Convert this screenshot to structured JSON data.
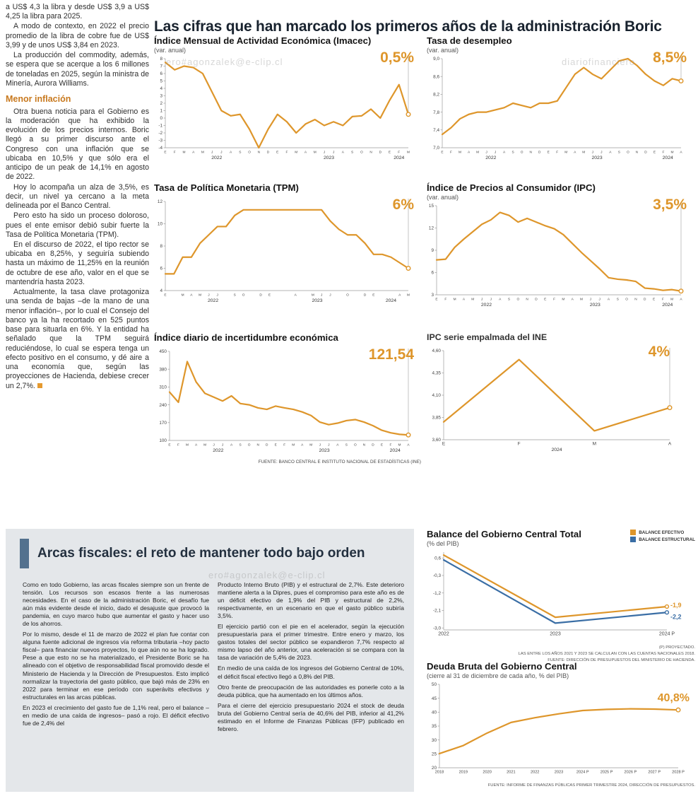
{
  "headline": "Las cifras que han marcado los primeros años de la administración Boric",
  "watermarks": {
    "wm1": "ero#agonzalek@e-clip.cl",
    "wm2": "diariofinanciero",
    "wm3": "ero#agonzalek@e-clip.cl"
  },
  "left_column": {
    "paragraphs": [
      "a US$ 4,3 la libra y desde US$ 3,9 a US$ 4,25 la libra para 2025.",
      "A modo de contexto, en 2022 el precio promedio de la libra de cobre fue de US$ 3,99 y de unos US$ 3,84 en 2023.",
      "La producción del commodity, además, se espera que se acerque a los 6 millones de toneladas en 2025, según la ministra de Minería, Aurora Williams."
    ],
    "subhead": "Menor inflación",
    "paragraphs2": [
      "Otra buena noticia para el Gobierno es la moderación que ha exhibido la evolución de los precios internos. Boric llegó a su primer discurso ante el Congreso con una inflación que se ubicaba en 10,5% y que sólo era el anticipo de un peak de 14,1% en agosto de 2022.",
      "Hoy lo acompaña un alza de 3,5%, es decir, un nivel ya cercano a la meta delineada por el Banco Central.",
      "Pero esto ha sido un proceso doloroso, pues el ente emisor debió subir fuerte la Tasa de Política Monetaria (TPM).",
      "En el discurso de 2022, el tipo rector se ubicaba en 8,25%, y seguiría subiendo hasta un máximo de 11,25% en la reunión de octubre de ese año, valor en el que se mantendría hasta 2023.",
      "Actualmente, la tasa clave protagoniza una senda de bajas –de la mano de una menor inflación–, por lo cual el Consejo del banco ya la ha recortado en 525 puntos base para situarla en 6%. Y la entidad ha señalado que la TPM seguirá reduciéndose, lo cual se espera tenga un efecto positivo en el consumo, y dé aire a una economía que, según las proyecciones de Hacienda, debiese crecer un 2,7%."
    ]
  },
  "source_note": "FUENTE: BANCO CENTRAL E INSTITUTO NACIONAL DE ESTADÍSTICAS (INE)",
  "fiscal": {
    "headline": "Arcas fiscales: el reto de mantener todo bajo orden",
    "col1": [
      "Como en todo Gobierno, las arcas fiscales siempre son un frente de tensión. Los recursos son escasos frente a las numerosas necesidades. En el caso de la administración Boric, el desafío fue aún más evidente desde el inicio, dado el desajuste que provocó la pandemia, en cuyo marco hubo que aumentar el gasto y hacer uso de los ahorros.",
      "Por lo mismo, desde el 11 de marzo de 2022 el plan fue contar con alguna fuente adicional de ingresos vía reforma tributaria –hoy pacto fiscal– para financiar nuevos proyectos, lo que aún no se ha logrado. Pese a que esto no se ha materializado, el Presidente Boric se ha alineado con el objetivo de responsabilidad fiscal promovido desde el Ministerio de Hacienda y la Dirección de Presupuestos. Esto implicó normalizar la trayectoria del gasto público, que bajó más de 23% en 2022 para terminar en ese período con superávits efectivos y estructurales en las arcas públicas.",
      "En 2023 el crecimiento del gasto fue de 1,1% real, pero el balance –en medio de una caída de ingresos– pasó a rojo. El déficit efectivo fue de 2,4% del"
    ],
    "col2": [
      "Producto Interno Bruto (PIB) y el estructural de 2,7%. Este deterioro mantiene alerta a la Dipres, pues el compromiso para este año es de un déficit efectivo de 1,9% del PIB y estructural de 2,2%, respectivamente, en un escenario en que el gasto público subiría 3,5%.",
      "El ejercicio partió con el pie en el acelerador, según la ejecución presupuestaria para el primer trimestre. Entre enero y marzo, los gastos totales del sector público se expandieron 7,7% respecto al mismo lapso del año anterior, una aceleración si se compara con la tasa de variación de 5,4% de 2023.",
      "En medio de una caída de los ingresos del Gobierno Central de 10%, el déficit fiscal efectivo llegó a 0,8% del PIB.",
      "Otro frente de preocupación de las autoridades es ponerle coto a la deuda pública, que ha aumentado en los últimos años.",
      "Para el cierre del ejercicio presupuestario 2024 el stock de deuda bruta del Gobierno Central sería de 40,6% del PIB, inferior al 41,2% estimado en el Informe de Finanzas Públicas (IFP) publicado en febrero."
    ]
  },
  "colors": {
    "accent_orange": "#de962b",
    "line_blue": "#3a6ea5",
    "box_grey": "#e4e7ea",
    "bar_blue": "#53718e"
  },
  "chart_data": [
    {
      "name": "imacec",
      "type": "line",
      "title": "Índice Mensual de Actividad Económica (Imacec)",
      "subtitle": "(var. anual)",
      "callout": "0,5%",
      "ylim": [
        -4,
        8
      ],
      "y_ticks": [
        8,
        7,
        6,
        5,
        4,
        3,
        2,
        1,
        0,
        -1,
        -2,
        -3,
        -4
      ],
      "x_labels": [
        "E",
        "F",
        "M",
        "A",
        "M",
        "J",
        "J",
        "A",
        "S",
        "O",
        "N",
        "D",
        "E",
        "F",
        "M",
        "A",
        "M",
        "J",
        "J",
        "A",
        "S",
        "O",
        "N",
        "D",
        "E",
        "F",
        "M"
      ],
      "years": [
        {
          "label": "2022",
          "i": 5.5
        },
        {
          "label": "2023",
          "i": 17.5
        },
        {
          "label": "2024",
          "i": 25
        }
      ],
      "series": [
        {
          "name": "Imacec var. anual %",
          "color": "#de962b",
          "values": [
            7.5,
            6.5,
            7.0,
            6.8,
            6.0,
            3.5,
            1.0,
            0.3,
            0.5,
            -1.5,
            -4.0,
            -1.5,
            0.5,
            -0.5,
            -2.0,
            -0.8,
            -0.2,
            -1.0,
            -0.5,
            -1.0,
            0.2,
            0.3,
            1.2,
            0.0,
            2.4,
            4.5,
            0.5
          ]
        }
      ],
      "dropline": true,
      "ml": 16,
      "mb": 20,
      "xfs": 4.8
    },
    {
      "name": "desempleo",
      "type": "line",
      "title": "Tasa de desempleo",
      "subtitle": "(var. anual)",
      "callout": "8,5%",
      "ylim": [
        7.0,
        9.0
      ],
      "y_ticks": [
        9.0,
        8.6,
        8.2,
        7.8,
        7.4,
        7.0
      ],
      "y_tick_labels": [
        "9,0",
        "8,6",
        "8,2",
        "7,8",
        "7,4",
        "7,0"
      ],
      "x_labels": [
        "E",
        "F",
        "M",
        "A",
        "M",
        "J",
        "J",
        "A",
        "S",
        "O",
        "N",
        "D",
        "E",
        "F",
        "M",
        "A",
        "M",
        "J",
        "J",
        "A",
        "S",
        "O",
        "N",
        "D",
        "E",
        "F",
        "M",
        "A"
      ],
      "years": [
        {
          "label": "2022",
          "i": 5.5
        },
        {
          "label": "2023",
          "i": 17.5
        },
        {
          "label": "2024",
          "i": 25.5
        }
      ],
      "series": [
        {
          "name": "Tasa de desempleo %",
          "color": "#de962b",
          "values": [
            7.3,
            7.45,
            7.65,
            7.75,
            7.8,
            7.8,
            7.85,
            7.9,
            8.0,
            7.95,
            7.9,
            8.0,
            8.0,
            8.05,
            8.35,
            8.65,
            8.8,
            8.65,
            8.55,
            8.75,
            8.95,
            9.0,
            8.85,
            8.65,
            8.5,
            8.4,
            8.55,
            8.5
          ]
        }
      ],
      "dropline": true,
      "ml": 22,
      "mb": 20,
      "xfs": 4.8
    },
    {
      "name": "tpm",
      "type": "line",
      "title": "Tasa de Política Monetaria (TPM)",
      "callout": "6%",
      "ylim": [
        4,
        12
      ],
      "y_ticks": [
        12,
        10,
        8,
        6,
        4
      ],
      "x_labels": [
        "E",
        "",
        "M",
        "A",
        "M",
        "J",
        "J",
        "",
        "S",
        "O",
        "",
        "D",
        "E",
        "",
        "",
        "A",
        "",
        "M",
        "J",
        "J",
        "",
        "O",
        "",
        "D",
        "E",
        "",
        "",
        "A",
        "M"
      ],
      "years": [
        {
          "label": "2022",
          "i": 5.5
        },
        {
          "label": "2023",
          "i": 17.5
        },
        {
          "label": "2024",
          "i": 26
        }
      ],
      "series": [
        {
          "name": "TPM %",
          "color": "#de962b",
          "values": [
            5.5,
            5.5,
            7,
            7,
            8.25,
            9,
            9.75,
            9.75,
            10.75,
            11.25,
            11.25,
            11.25,
            11.25,
            11.25,
            11.25,
            11.25,
            11.25,
            11.25,
            11.25,
            10.25,
            9.5,
            9,
            9,
            8.25,
            7.25,
            7.25,
            7,
            6.5,
            6
          ]
        }
      ],
      "dropline": true,
      "ml": 16,
      "mb": 20,
      "xfs": 4.8
    },
    {
      "name": "ipc",
      "type": "line",
      "title": "Índice de Precios al Consumidor (IPC)",
      "subtitle": "(var. anual)",
      "callout": "3,5%",
      "ylim": [
        3,
        15
      ],
      "y_ticks": [
        15,
        12,
        9,
        6,
        3
      ],
      "x_labels": [
        "E",
        "F",
        "M",
        "A",
        "M",
        "J",
        "J",
        "A",
        "S",
        "O",
        "N",
        "D",
        "E",
        "F",
        "M",
        "A",
        "M",
        "J",
        "J",
        "A",
        "S",
        "O",
        "N",
        "D",
        "E",
        "F",
        "M",
        "A"
      ],
      "years": [
        {
          "label": "2022",
          "i": 5.5
        },
        {
          "label": "2023",
          "i": 17.5
        },
        {
          "label": "2024",
          "i": 25.5
        }
      ],
      "series": [
        {
          "name": "IPC var. anual %",
          "color": "#de962b",
          "values": [
            7.7,
            7.8,
            9.4,
            10.5,
            11.5,
            12.5,
            13.1,
            14.1,
            13.7,
            12.8,
            13.3,
            12.8,
            12.3,
            11.9,
            11.1,
            9.9,
            8.7,
            7.6,
            6.5,
            5.3,
            5.1,
            5.0,
            4.8,
            3.9,
            3.8,
            3.6,
            3.7,
            3.5
          ]
        }
      ],
      "dropline": true,
      "ml": 14,
      "mb": 20,
      "xfs": 4.8
    },
    {
      "name": "incertidumbre",
      "type": "line",
      "title": "Índice diario de incertidumbre económica",
      "callout": "121,54",
      "ylim": [
        100,
        450
      ],
      "y_ticks": [
        450,
        380,
        310,
        240,
        170,
        100
      ],
      "x_labels": [
        "E",
        "F",
        "M",
        "A",
        "M",
        "J",
        "J",
        "A",
        "S",
        "O",
        "N",
        "D",
        "E",
        "F",
        "M",
        "A",
        "M",
        "J",
        "J",
        "A",
        "S",
        "O",
        "N",
        "D",
        "E",
        "F",
        "M",
        "A"
      ],
      "years": [
        {
          "label": "2022",
          "i": 5.5
        },
        {
          "label": "2023",
          "i": 17.5
        },
        {
          "label": "2024",
          "i": 25.5
        }
      ],
      "series": [
        {
          "name": "Índice de incertidumbre",
          "color": "#de962b",
          "values": [
            290,
            250,
            410,
            330,
            285,
            270,
            255,
            275,
            245,
            240,
            228,
            222,
            235,
            228,
            222,
            212,
            198,
            172,
            162,
            168,
            178,
            182,
            172,
            158,
            140,
            130,
            124,
            121.54
          ]
        }
      ],
      "dropline": true,
      "ml": 22,
      "mb": 20,
      "xfs": 4.8
    },
    {
      "name": "ipc-empalmada",
      "type": "line",
      "title": "IPC serie empalmada del INE",
      "callout": "4%",
      "ylim": [
        3.6,
        4.6
      ],
      "y_ticks": [
        4.6,
        4.35,
        4.1,
        3.85,
        3.6
      ],
      "y_tick_labels": [
        "4,60",
        "4,35",
        "4,10",
        "3,85",
        "3,60"
      ],
      "x_labels": [
        "E",
        "F",
        "M",
        "A"
      ],
      "years": [
        {
          "label": "2024",
          "i": 1.5
        }
      ],
      "series": [
        {
          "name": "IPC serie empalmada",
          "color": "#de962b",
          "values": [
            3.8,
            4.5,
            3.7,
            3.96
          ]
        }
      ],
      "dropline": true,
      "ml": 24,
      "mr": 30,
      "mb": 20,
      "xfs": 6.5
    },
    {
      "name": "balance-gobierno-central",
      "type": "line",
      "title": "Balance del Gobierno Central Total",
      "subtitle": "(% del PIB)",
      "legend": [
        "BALANCE EFECTIVO",
        "BALANCE ESTRUCTURAL"
      ],
      "notes": [
        "(P) PROYECTADO.",
        "LAS ENTRE LOS AÑOS 2021 Y 2023 SE CALCULAN CON LAS CUENTAS NACIONALES 2018.",
        "FUENTE: DIRECCIÓN DE PRESUPUESTOS DEL MINISTERIO DE HACIENDA."
      ],
      "ylim": [
        -3.1,
        0.9
      ],
      "y_ticks": [
        0.6,
        -0.3,
        -1.2,
        -2.1,
        -3.0
      ],
      "y_tick_labels": [
        "0,6",
        "-0,3",
        "-1,2",
        "-2,1",
        "-3,0"
      ],
      "x_labels": [
        "2022",
        "2023",
        "2024 P"
      ],
      "series": [
        {
          "name": "BALANCE EFECTIVO",
          "color": "#de962b",
          "values": [
            0.75,
            -2.45,
            -1.9
          ],
          "end_label": "-1,9"
        },
        {
          "name": "BALANCE ESTRUCTURAL",
          "color": "#3a6ea5",
          "values": [
            0.5,
            -2.75,
            -2.2
          ],
          "end_label": "-2,2"
        }
      ],
      "ml": 24,
      "mr": 36,
      "mb": 14,
      "xfs": 7,
      "dot_r": 2.4
    },
    {
      "name": "deuda-bruta",
      "type": "line",
      "title": "Deuda Bruta del Gobierno Central",
      "subtitle": "(cierre al 31 de diciembre de cada año, % del PIB)",
      "callout": "40,8%",
      "note": "FUENTE: INFORME DE FINANZAS PÚBLICAS PRIMER TRIMESTRE 2024, DIRECCIÓN DE PRESUPUESTOS.",
      "ylim": [
        20,
        50
      ],
      "y_ticks": [
        50,
        45,
        40,
        35,
        30,
        25,
        20
      ],
      "x_labels": [
        "2018",
        "2019",
        "2020",
        "2021",
        "2022",
        "2023",
        "2024 P",
        "2025 P",
        "2026 P",
        "2027 P",
        "2028 P"
      ],
      "series": [
        {
          "name": "Deuda bruta % del PIB",
          "color": "#de962b",
          "values": [
            25.1,
            28.0,
            32.5,
            36.3,
            38.0,
            39.4,
            40.6,
            41.0,
            41.2,
            41.1,
            40.8
          ]
        }
      ],
      "ml": 18,
      "mr": 20,
      "mb": 14,
      "xfs": 5.6
    }
  ]
}
